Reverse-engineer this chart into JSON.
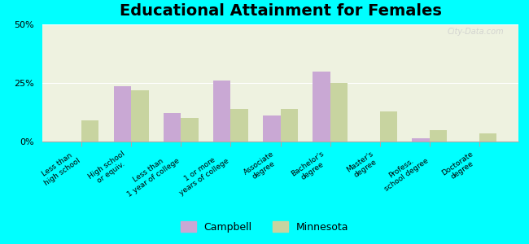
{
  "title": "Educational Attainment for Females",
  "categories": [
    "Less than\nhigh school",
    "High school\nor equiv.",
    "Less than\n1 year of college",
    "1 or more\nyears of college",
    "Associate\ndegree",
    "Bachelor's\ndegree",
    "Master's\ndegree",
    "Profess.\nschool degree",
    "Doctorate\ndegree"
  ],
  "campbell_values": [
    0.0,
    23.5,
    12.0,
    26.0,
    11.0,
    30.0,
    0.0,
    1.5,
    0.0
  ],
  "minnesota_values": [
    9.0,
    22.0,
    10.0,
    14.0,
    14.0,
    25.0,
    13.0,
    5.0,
    3.5
  ],
  "campbell_color": "#c9a8d4",
  "minnesota_color": "#c8d4a0",
  "background_color": "#00ffff",
  "plot_bg": "#eef2e0",
  "bar_width": 0.35,
  "ylim": [
    0,
    50
  ],
  "yticks": [
    0,
    25,
    50
  ],
  "ytick_labels": [
    "0%",
    "25%",
    "50%"
  ],
  "title_fontsize": 14,
  "tick_fontsize": 6.5,
  "legend_labels": [
    "Campbell",
    "Minnesota"
  ],
  "watermark": "City-Data.com"
}
